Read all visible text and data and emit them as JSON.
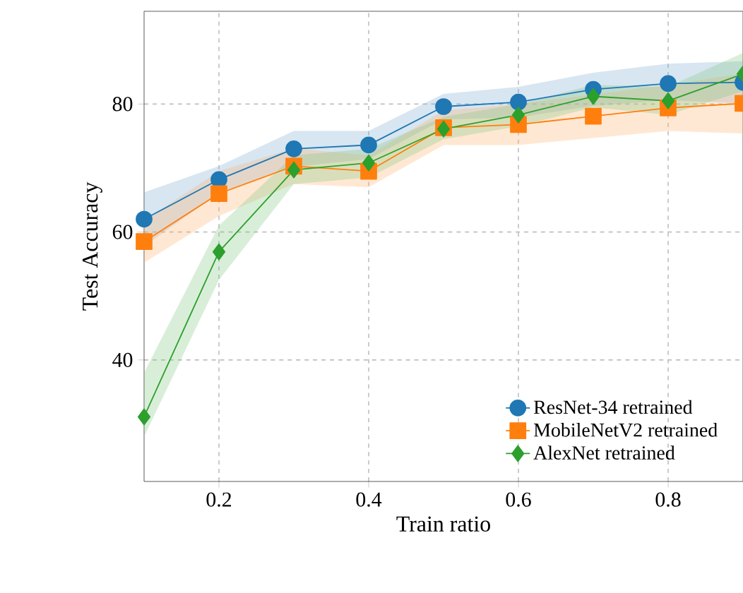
{
  "chart_data": {
    "type": "line",
    "xlabel": "Train ratio",
    "ylabel": "Test Accuracy",
    "x": [
      0.1,
      0.2,
      0.3,
      0.4,
      0.5,
      0.6,
      0.7,
      0.8,
      0.9
    ],
    "series": [
      {
        "name": "ResNet-34 retrained",
        "color": "#1f77b4",
        "marker": "circle",
        "values": [
          62.0,
          68.2,
          73.0,
          73.6,
          79.6,
          80.3,
          82.3,
          83.2,
          83.4
        ],
        "lower": [
          57.8,
          66.1,
          70.2,
          71.4,
          77.6,
          77.9,
          79.7,
          80.6,
          80.1
        ],
        "upper": [
          66.2,
          70.3,
          75.8,
          75.8,
          81.6,
          82.7,
          84.9,
          86.3,
          86.7
        ]
      },
      {
        "name": "MobileNetV2 retrained",
        "color": "#ff7f0e",
        "marker": "square",
        "values": [
          58.5,
          66.0,
          70.3,
          69.5,
          76.3,
          76.8,
          78.1,
          79.4,
          80.1
        ],
        "lower": [
          55.2,
          62.5,
          67.5,
          67.0,
          73.6,
          73.6,
          74.7,
          75.8,
          75.4
        ],
        "upper": [
          61.8,
          69.5,
          73.1,
          72.0,
          79.0,
          80.0,
          81.5,
          83.0,
          84.8
        ]
      },
      {
        "name": "AlexNet retrained",
        "color": "#2ca02c",
        "marker": "diamond",
        "values": [
          31.1,
          56.9,
          69.7,
          70.8,
          76.1,
          78.3,
          81.2,
          80.5,
          84.7
        ],
        "lower": [
          28.0,
          52.5,
          67.5,
          68.5,
          74.5,
          76.5,
          79.5,
          78.3,
          82.0
        ],
        "upper": [
          38.0,
          61.0,
          72.0,
          73.0,
          78.0,
          80.0,
          83.0,
          82.7,
          88.0
        ]
      }
    ],
    "xlim": [
      0.1,
      0.9
    ],
    "ylim": [
      21,
      94.5
    ],
    "xticks": [
      0.2,
      0.4,
      0.6,
      0.8
    ],
    "yticks": [
      40,
      60,
      80
    ],
    "grid": true,
    "legend": "bottom right",
    "line_style": "solid"
  }
}
